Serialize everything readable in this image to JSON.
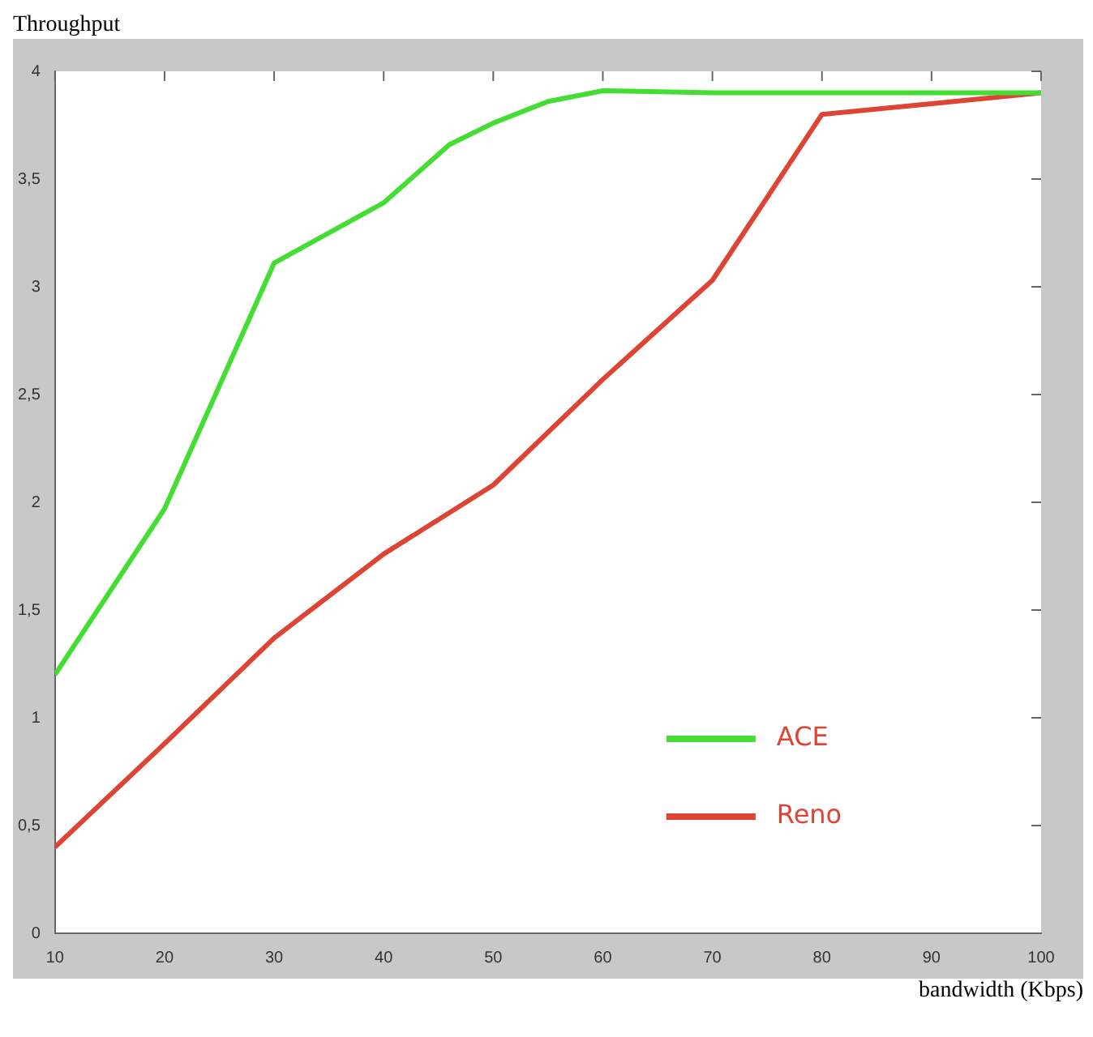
{
  "chart_data": {
    "type": "line",
    "title": "Throughput",
    "xlabel": "bandwidth (Kbps)",
    "xlim": [
      10,
      100
    ],
    "xticks": [
      10,
      20,
      30,
      40,
      50,
      60,
      70,
      80,
      90,
      100
    ],
    "ylim": [
      0,
      4
    ],
    "yticks": [
      0,
      {
        "value": 0.5,
        "label": "0,5"
      },
      1,
      {
        "value": 1.5,
        "label": "1,5"
      },
      2,
      {
        "value": 2.5,
        "label": "2,5"
      },
      3,
      {
        "value": 3.5,
        "label": "3,5"
      },
      4
    ],
    "legend": "bottom right",
    "grid": false,
    "marker": "none",
    "line_style": "solid",
    "series": [
      {
        "name": "ACE",
        "color": "#44dd33",
        "x": [
          10,
          20,
          30,
          40,
          46,
          50,
          55,
          60,
          70,
          80,
          90,
          100
        ],
        "values": [
          1.2,
          1.97,
          3.11,
          3.39,
          3.66,
          3.76,
          3.86,
          3.91,
          3.9,
          3.9,
          3.9,
          3.9
        ]
      },
      {
        "name": "Reno",
        "color": "#dd4433",
        "x": [
          10,
          20,
          30,
          40,
          50,
          60,
          70,
          80,
          90,
          100
        ],
        "values": [
          0.4,
          0.88,
          1.37,
          1.76,
          2.08,
          2.57,
          3.03,
          3.8,
          3.85,
          3.9
        ]
      }
    ]
  }
}
